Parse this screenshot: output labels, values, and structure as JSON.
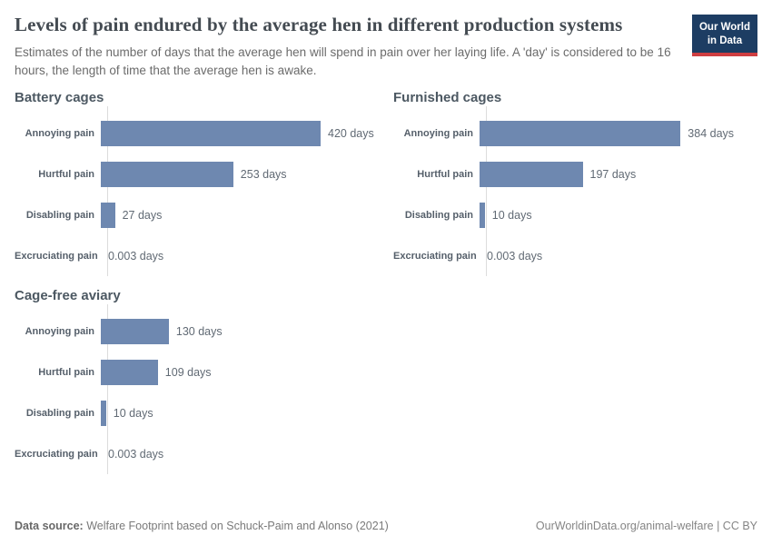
{
  "header": {
    "title": "Levels of pain endured by the average hen in different production systems",
    "subtitle": "Estimates of the number of days that the average hen will spend in pain over her laying life. A 'day' is considered to be 16 hours, the length of time that the average hen is awake.",
    "logo": {
      "line1": "Our World",
      "line2": "in Data"
    }
  },
  "chart_data": {
    "type": "bar",
    "orientation": "horizontal",
    "unit": "days",
    "categories": [
      "Annoying pain",
      "Hurtful pain",
      "Disabling pain",
      "Excruciating pain"
    ],
    "x_axis": {
      "min": 0,
      "max": 420,
      "gridlines": false,
      "ticks_visible": false
    },
    "series": [
      {
        "name": "Battery cages",
        "values": [
          420,
          253,
          27,
          0.003
        ],
        "value_labels": [
          "420 days",
          "253 days",
          "27 days",
          "0.003 days"
        ]
      },
      {
        "name": "Furnished cages",
        "values": [
          384,
          197,
          10,
          0.003
        ],
        "value_labels": [
          "384 days",
          "197 days",
          "10 days",
          "0.003 days"
        ]
      },
      {
        "name": "Cage-free aviary",
        "values": [
          130,
          109,
          10,
          0.003
        ],
        "value_labels": [
          "130 days",
          "109 days",
          "10 days",
          "0.003 days"
        ]
      }
    ],
    "colors": {
      "bar": "#6e88b0",
      "axis": "#dcdcdc",
      "brand_navy": "#1d3d63",
      "brand_red": "#cf3e41"
    }
  },
  "footer": {
    "source_label": "Data source:",
    "source_text": "Welfare Footprint based on Schuck-Paim and Alonso (2021)",
    "credit": "OurWorldinData.org/animal-welfare | CC BY"
  }
}
